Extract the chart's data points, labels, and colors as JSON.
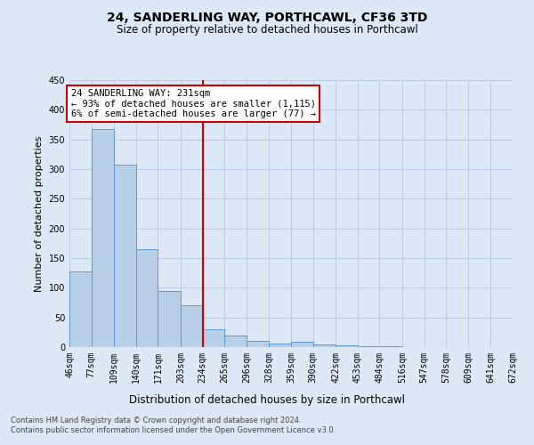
{
  "title": "24, SANDERLING WAY, PORTHCAWL, CF36 3TD",
  "subtitle": "Size of property relative to detached houses in Porthcawl",
  "xlabel": "Distribution of detached houses by size in Porthcawl",
  "ylabel": "Number of detached properties",
  "bin_labels": [
    "46sqm",
    "77sqm",
    "109sqm",
    "140sqm",
    "171sqm",
    "203sqm",
    "234sqm",
    "265sqm",
    "296sqm",
    "328sqm",
    "359sqm",
    "390sqm",
    "422sqm",
    "453sqm",
    "484sqm",
    "516sqm",
    "547sqm",
    "578sqm",
    "609sqm",
    "641sqm",
    "672sqm"
  ],
  "bar_heights": [
    127,
    368,
    307,
    165,
    94,
    70,
    30,
    20,
    10,
    6,
    9,
    5,
    3,
    2,
    1,
    0,
    0,
    0,
    0,
    0
  ],
  "bar_color": "#b8cfe8",
  "bar_edge_color": "#5b9bd5",
  "vline_x": 234,
  "bin_edges": [
    46,
    77,
    109,
    140,
    171,
    203,
    234,
    265,
    296,
    328,
    359,
    390,
    422,
    453,
    484,
    516,
    547,
    578,
    609,
    641,
    672
  ],
  "ylim": [
    0,
    450
  ],
  "yticks": [
    0,
    50,
    100,
    150,
    200,
    250,
    300,
    350,
    400,
    450
  ],
  "annotation_text": "24 SANDERLING WAY: 231sqm\n← 93% of detached houses are smaller (1,115)\n6% of semi-detached houses are larger (77) →",
  "annotation_box_color": "#ffffff",
  "annotation_box_edge": "#cc0000",
  "vline_color": "#cc0000",
  "bg_color": "#dce8f5",
  "grid_color": "#b8cce4",
  "footer_line1": "Contains HM Land Registry data © Crown copyright and database right 2024.",
  "footer_line2": "Contains public sector information licensed under the Open Government Licence v3.0."
}
